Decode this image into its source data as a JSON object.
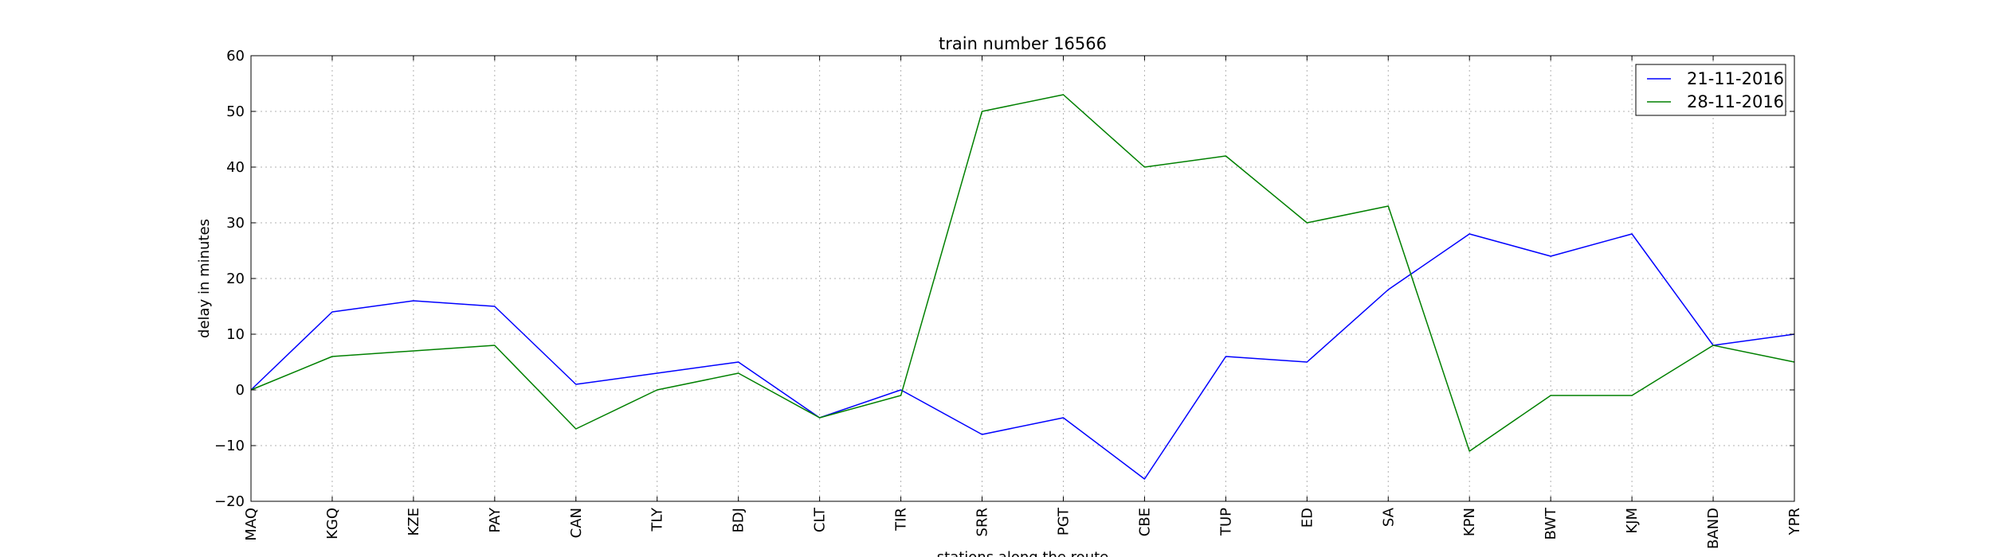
{
  "chart_data": {
    "type": "line",
    "title": "train number 16566",
    "xlabel": "stations along the route",
    "ylabel": "delay in minutes",
    "categories": [
      "MAQ",
      "KGQ",
      "KZE",
      "PAY",
      "CAN",
      "TLY",
      "BDJ",
      "CLT",
      "TIR",
      "SRR",
      "PGT",
      "CBE",
      "TUP",
      "ED",
      "SA",
      "KPN",
      "BWT",
      "KJM",
      "BAND",
      "YPR"
    ],
    "ylim": [
      -20,
      60
    ],
    "yticks": [
      -20,
      -10,
      0,
      10,
      20,
      30,
      40,
      50,
      60
    ],
    "grid": true,
    "legend_position": "top-right",
    "series": [
      {
        "name": "21-11-2016",
        "color": "#0000ff",
        "values": [
          0,
          14,
          16,
          15,
          1,
          3,
          5,
          -5,
          0,
          -8,
          -5,
          -16,
          6,
          5,
          18,
          28,
          24,
          28,
          8,
          10
        ]
      },
      {
        "name": "28-11-2016",
        "color": "#008000",
        "values": [
          0,
          6,
          7,
          8,
          -7,
          0,
          3,
          -5,
          -1,
          50,
          53,
          40,
          42,
          30,
          33,
          -11,
          -1,
          -1,
          8,
          5
        ]
      }
    ]
  }
}
